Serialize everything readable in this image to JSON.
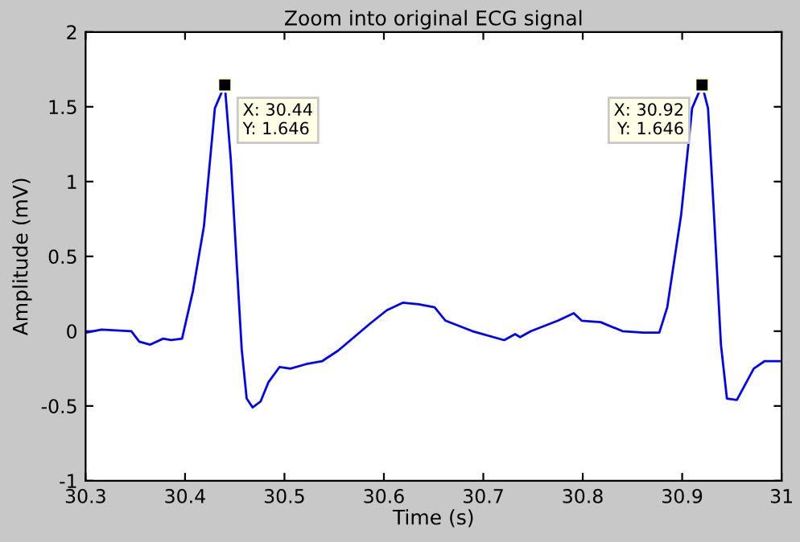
{
  "chart_data": {
    "type": "line",
    "title": "Zoom into original ECG signal",
    "xlabel": "Time (s)",
    "ylabel": "Amplitude (mV)",
    "xlim": [
      30.3,
      31
    ],
    "xticks": [
      30.3,
      30.4,
      30.5,
      30.6,
      30.7,
      30.8,
      30.9,
      31
    ],
    "ylim": [
      -1,
      2
    ],
    "yticks": [
      -1,
      -0.5,
      0,
      0.5,
      1,
      1.5,
      2
    ],
    "grid": false,
    "marker": "none",
    "line_style": "solid",
    "series": [
      {
        "color": "#0000ff",
        "x": [
          30.3,
          30.316,
          30.346,
          30.354,
          30.365,
          30.378,
          30.386,
          30.397,
          30.408,
          30.419,
          30.43,
          30.44,
          30.446,
          30.452,
          30.457,
          30.462,
          30.468,
          30.476,
          30.484,
          30.495,
          30.506,
          30.522,
          30.538,
          30.554,
          30.57,
          30.586,
          30.603,
          30.619,
          30.635,
          30.651,
          30.662,
          30.689,
          30.721,
          30.732,
          30.737,
          30.748,
          30.775,
          30.791,
          30.799,
          30.818,
          30.84,
          30.861,
          30.877,
          30.885,
          30.899,
          30.91,
          30.92,
          30.926,
          30.932,
          30.939,
          30.945,
          30.955,
          30.972,
          30.983,
          30.999
        ],
        "values": [
          -0.01,
          0.01,
          0.0,
          -0.07,
          -0.09,
          -0.05,
          -0.06,
          -0.05,
          0.27,
          0.7,
          1.49,
          1.646,
          1.15,
          0.45,
          -0.12,
          -0.45,
          -0.51,
          -0.47,
          -0.34,
          -0.24,
          -0.25,
          -0.22,
          -0.2,
          -0.13,
          -0.04,
          0.05,
          0.14,
          0.19,
          0.18,
          0.16,
          0.07,
          0.0,
          -0.06,
          -0.02,
          -0.04,
          0.0,
          0.07,
          0.12,
          0.07,
          0.06,
          0.0,
          -0.01,
          -0.01,
          0.16,
          0.78,
          1.49,
          1.646,
          1.49,
          0.78,
          -0.09,
          -0.45,
          -0.46,
          -0.25,
          -0.2,
          -0.2
        ]
      }
    ],
    "annotations": [
      {
        "text": "X: 30.44\nY: 1.646",
        "x": 30.44,
        "y": 1.646
      },
      {
        "text": "X: 30.92\nY: 1.646",
        "x": 30.92,
        "y": 1.646
      }
    ]
  }
}
